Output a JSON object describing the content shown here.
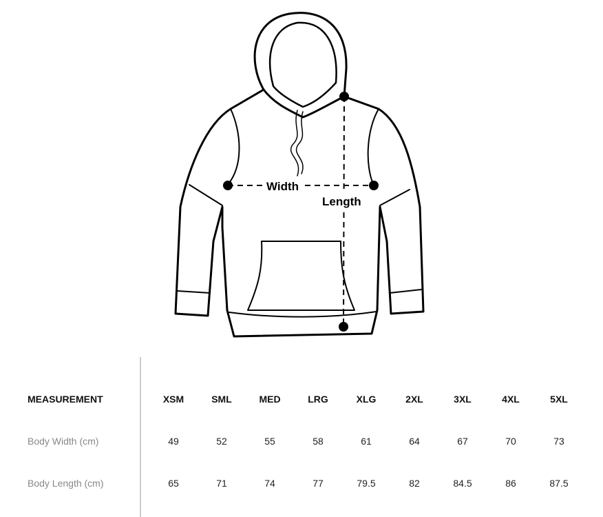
{
  "diagram": {
    "width_label": "Width",
    "length_label": "Length"
  },
  "table": {
    "header": [
      "MEASUREMENT",
      "XSM",
      "SML",
      "MED",
      "LRG",
      "XLG",
      "2XL",
      "3XL",
      "4XL",
      "5XL"
    ],
    "rows": [
      {
        "label": "Body Width (cm)",
        "values": [
          "49",
          "52",
          "55",
          "58",
          "61",
          "64",
          "67",
          "70",
          "73"
        ]
      },
      {
        "label": "Body Length (cm)",
        "values": [
          "65",
          "71",
          "74",
          "77",
          "79.5",
          "82",
          "84.5",
          "86",
          "87.5"
        ]
      }
    ]
  }
}
